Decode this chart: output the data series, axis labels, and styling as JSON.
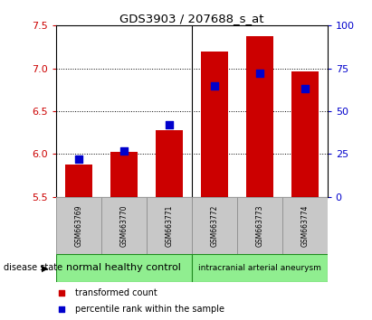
{
  "title": "GDS3903 / 207688_s_at",
  "samples": [
    "GSM663769",
    "GSM663770",
    "GSM663771",
    "GSM663772",
    "GSM663773",
    "GSM663774"
  ],
  "transformed_counts": [
    5.88,
    6.02,
    6.28,
    7.2,
    7.38,
    6.97
  ],
  "percentile_ranks": [
    22,
    27,
    42,
    65,
    72,
    63
  ],
  "ylim_left": [
    5.5,
    7.5
  ],
  "ylim_right": [
    0,
    100
  ],
  "yticks_left": [
    5.5,
    6.0,
    6.5,
    7.0,
    7.5
  ],
  "yticks_right": [
    0,
    25,
    50,
    75,
    100
  ],
  "bar_bottom": 5.5,
  "bar_color": "#cc0000",
  "dot_color": "#0000cc",
  "bar_width": 0.6,
  "dot_size": 30,
  "tick_color_left": "#cc0000",
  "tick_color_right": "#0000cc",
  "bg_color": "#c8c8c8",
  "group_color": "#90ee90",
  "group_edge_color": "#228B22",
  "disease_state_label": "disease state",
  "groups": [
    {
      "label": "normal healthy control",
      "start": 0,
      "end": 2,
      "fontsize": 8
    },
    {
      "label": "intracranial arterial aneurysm",
      "start": 3,
      "end": 5,
      "fontsize": 6.5
    }
  ],
  "legend_items": [
    {
      "label": "transformed count",
      "color": "#cc0000"
    },
    {
      "label": "percentile rank within the sample",
      "color": "#0000cc"
    }
  ]
}
